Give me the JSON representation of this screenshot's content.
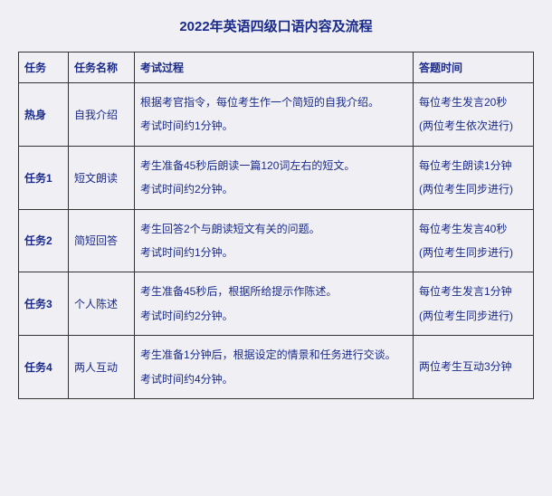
{
  "title": "2022年英语四级口语内容及流程",
  "headers": {
    "task": "任务",
    "name": "任务名称",
    "process": "考试过程",
    "time": "答题时间"
  },
  "rows": [
    {
      "task": "热身",
      "name": "自我介绍",
      "process_line1": "根据考官指令，每位考生作一个简短的自我介绍。",
      "process_line2": "考试时间约1分钟。",
      "time_line1": "每位考生发言20秒",
      "time_line2": "(两位考生依次进行)"
    },
    {
      "task": "任务1",
      "name": "短文朗读",
      "process_line1": "考生准备45秒后朗读一篇120词左右的短文。",
      "process_line2": "考试时间约2分钟。",
      "time_line1": "每位考生朗读1分钟",
      "time_line2": "(两位考生同步进行)"
    },
    {
      "task": "任务2",
      "name": "简短回答",
      "process_line1": "考生回答2个与朗读短文有关的问题。",
      "process_line2": "考试时间约1分钟。",
      "time_line1": "每位考生发言40秒",
      "time_line2": "(两位考生同步进行)"
    },
    {
      "task": "任务3",
      "name": "个人陈述",
      "process_line1": "考生准备45秒后，根据所给提示作陈述。",
      "process_line2": "考试时间约2分钟。",
      "time_line1": "每位考生发言1分钟",
      "time_line2": "(两位考生同步进行)"
    },
    {
      "task": "任务4",
      "name": "两人互动",
      "process_line1": "考生准备1分钟后，根据设定的情景和任务进行交谈。",
      "process_line2": "考试时间约4分钟。",
      "time_line1": "两位考生互动3分钟",
      "time_line2": ""
    }
  ]
}
